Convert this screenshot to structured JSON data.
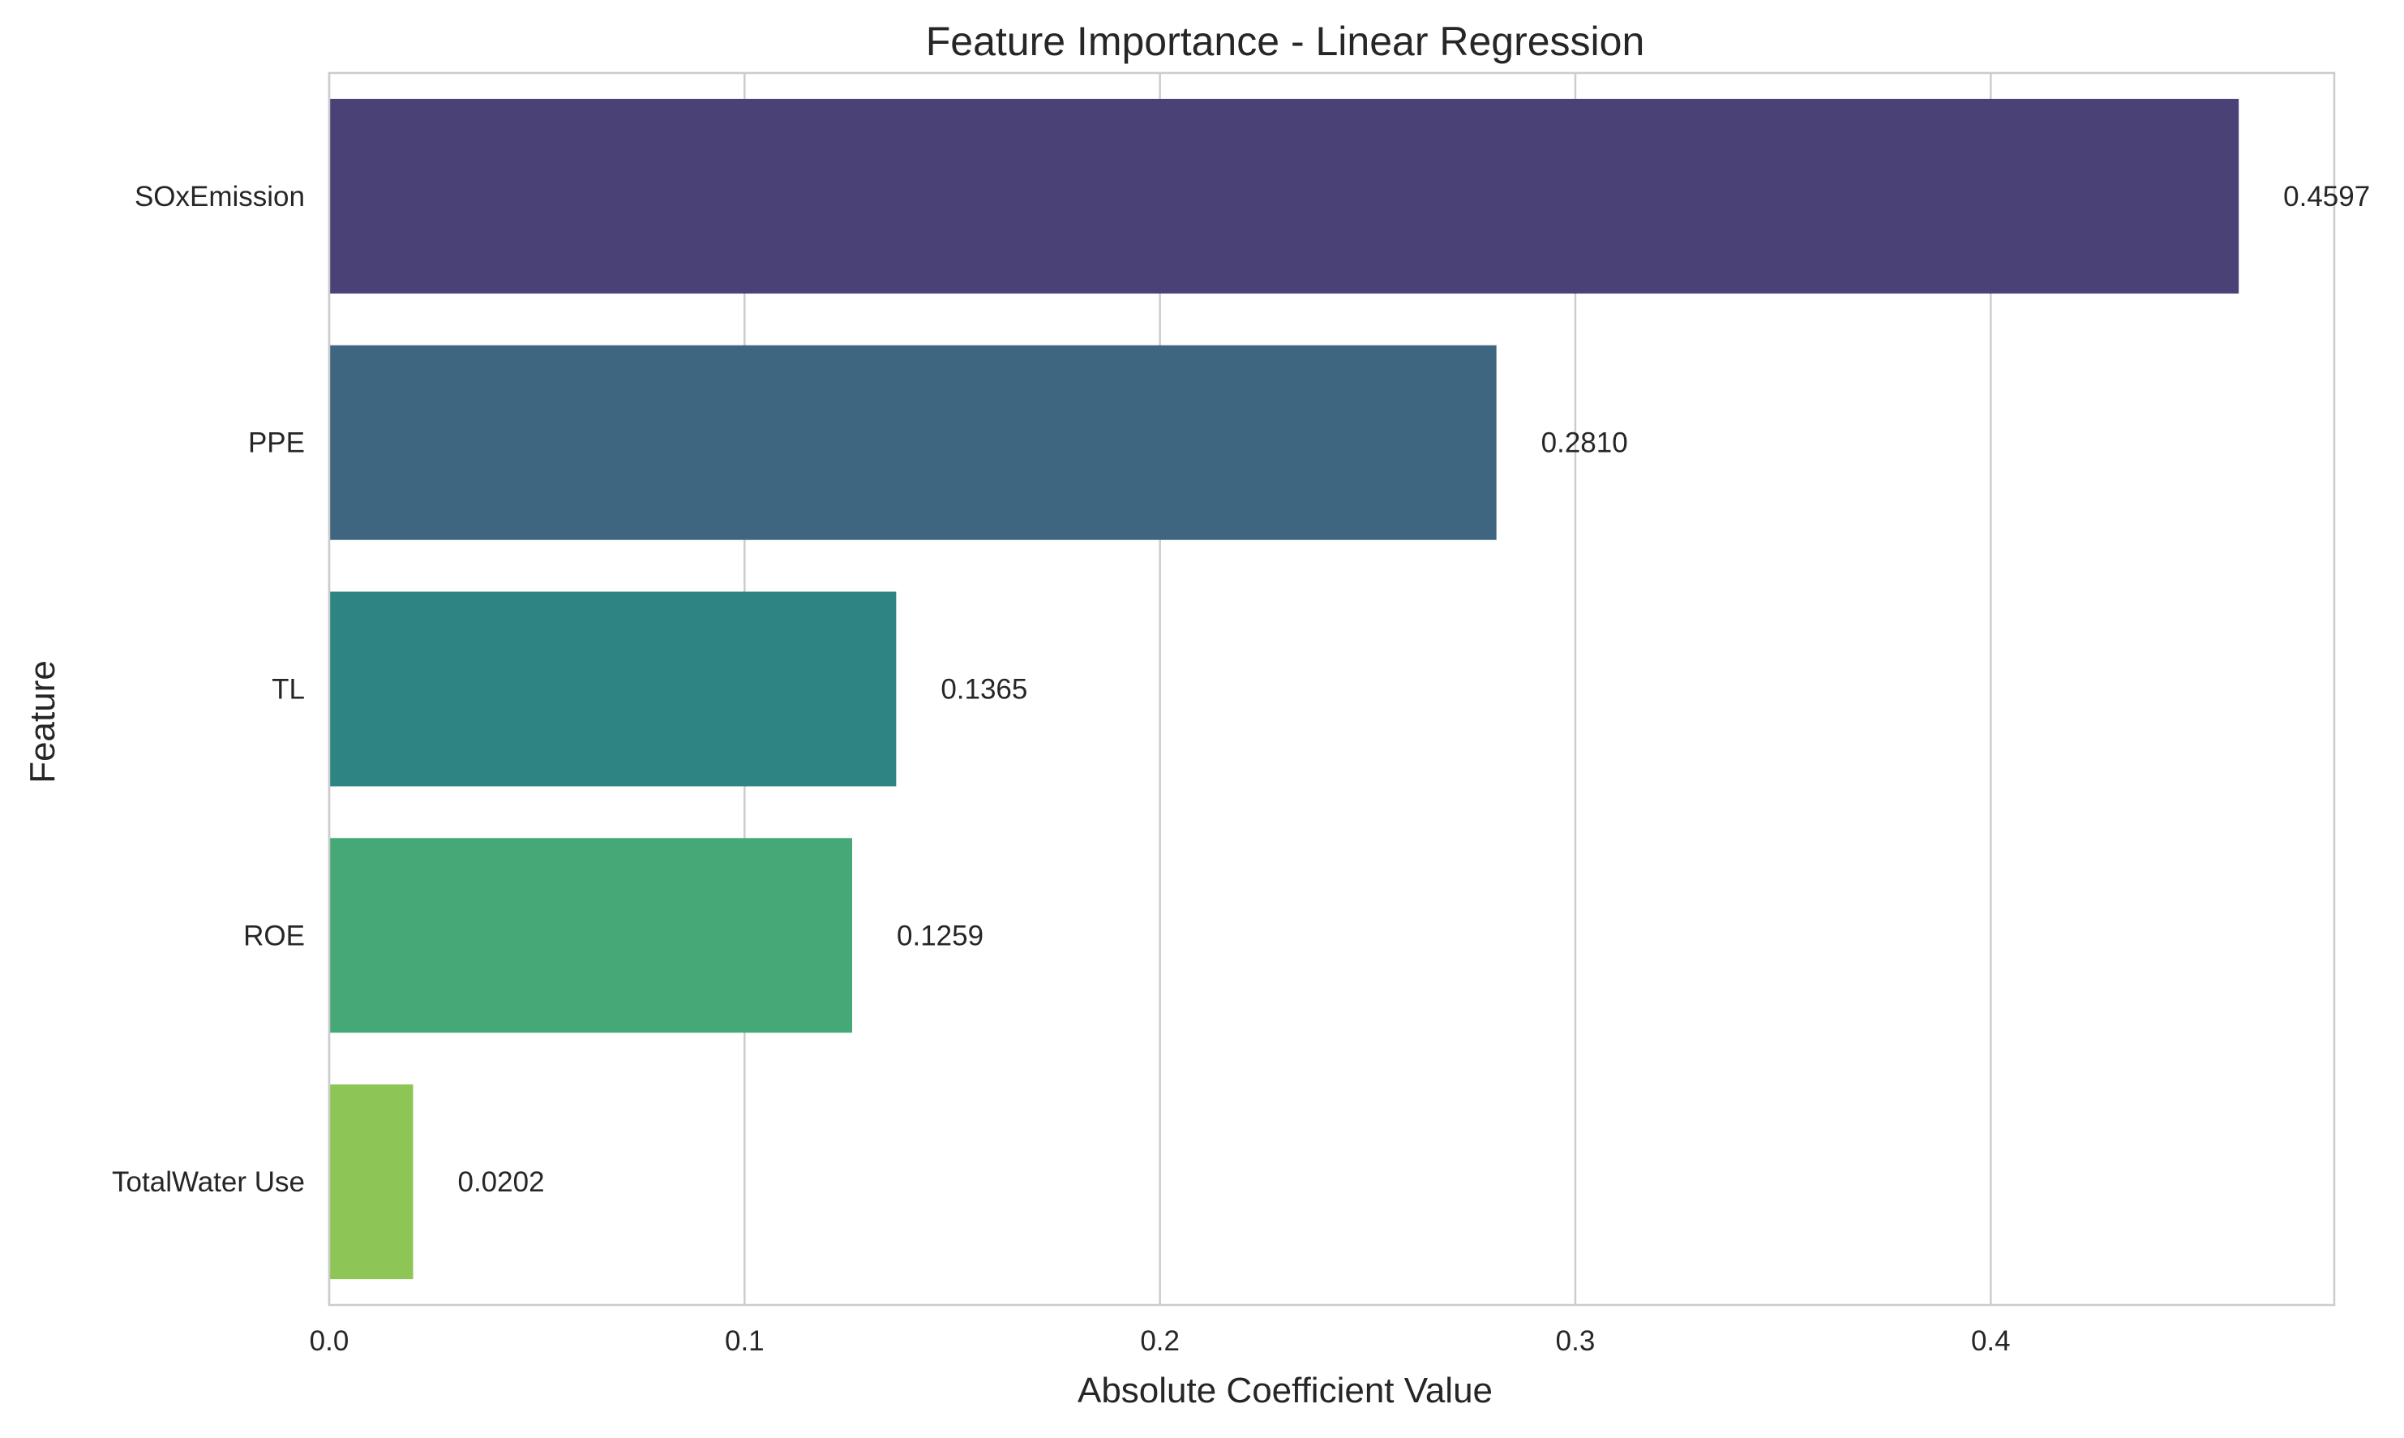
{
  "chart_data": {
    "type": "bar",
    "orientation": "horizontal",
    "title": "Feature Importance - Linear Regression",
    "xlabel": "Absolute Coefficient Value",
    "ylabel": "Feature",
    "categories": [
      "SOxEmission",
      "PPE",
      "TL",
      "ROE",
      "TotalWater Use"
    ],
    "values": [
      0.4597,
      0.281,
      0.1365,
      0.1259,
      0.0202
    ],
    "data_labels": [
      "0.4597",
      "0.2810",
      "0.1365",
      "0.1259",
      "0.0202"
    ],
    "xlim": [
      0,
      0.4827
    ],
    "xticks": [
      0.0,
      0.1,
      0.2,
      0.3,
      0.4
    ],
    "xtick_labels": [
      "0.0",
      "0.1",
      "0.2",
      "0.3",
      "0.4"
    ],
    "grid": "vertical",
    "legend": "none",
    "colors": [
      "#4a4176",
      "#3e6680",
      "#2e8480",
      "#46a877",
      "#8dc556"
    ]
  }
}
